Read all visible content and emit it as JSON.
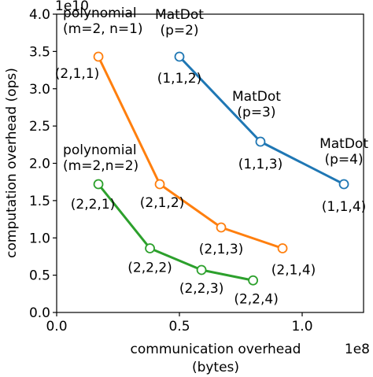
{
  "chart_data": {
    "type": "line",
    "xlabel": [
      "communication overhead",
      "(bytes)"
    ],
    "ylabel": "computation overhead (ops)",
    "x_exponent": "1e8",
    "y_exponent": "1e10",
    "xlim": [
      0.0,
      1.25
    ],
    "ylim": [
      0.0,
      4.0
    ],
    "x_ticks": [
      0.0,
      0.5,
      1.0
    ],
    "x_tick_labels": [
      "0.0",
      "0.5",
      "1.0"
    ],
    "y_ticks": [
      0.0,
      0.5,
      1.0,
      1.5,
      2.0,
      2.5,
      3.0,
      3.5,
      4.0
    ],
    "y_tick_labels": [
      "0.0",
      "0.5",
      "1.0",
      "1.5",
      "2.0",
      "2.5",
      "3.0",
      "3.5",
      "4.0"
    ],
    "grid": false,
    "series": [
      {
        "color": "#1f77b4",
        "x": [
          0.5,
          0.83,
          1.17
        ],
        "y": [
          3.43,
          2.29,
          1.72
        ],
        "point_labels": [
          "(1,1,2)",
          "(1,1,3)",
          "(1,1,4)"
        ]
      },
      {
        "color": "#ff7f0e",
        "x": [
          0.17,
          0.42,
          0.67,
          0.92
        ],
        "y": [
          3.43,
          1.72,
          1.14,
          0.86
        ],
        "point_labels": [
          "(2,1,1)",
          "(2,1,2)",
          "(2,1,3)",
          "(2,1,4)"
        ]
      },
      {
        "color": "#2ca02c",
        "x": [
          0.17,
          0.38,
          0.59,
          0.8
        ],
        "y": [
          1.72,
          0.86,
          0.57,
          0.43
        ],
        "point_labels": [
          "(2,2,1)",
          "(2,2,2)",
          "(2,2,3)",
          "(2,2,4)"
        ]
      }
    ],
    "annotations": [
      {
        "lines": [
          "polynomial",
          "(m=2, n=1)"
        ],
        "x": 0.17,
        "y": 3.43
      },
      {
        "lines": [
          "polynomial",
          "(m=2,n=2)"
        ],
        "x": 0.17,
        "y": 1.72
      },
      {
        "lines": [
          "MatDot",
          "(p=2)"
        ],
        "x": 0.5,
        "y": 3.43
      },
      {
        "lines": [
          "MatDot",
          "(p=3)"
        ],
        "x": 0.83,
        "y": 2.29
      },
      {
        "lines": [
          "MatDot",
          "(p=4)"
        ],
        "x": 1.17,
        "y": 1.72
      }
    ]
  }
}
